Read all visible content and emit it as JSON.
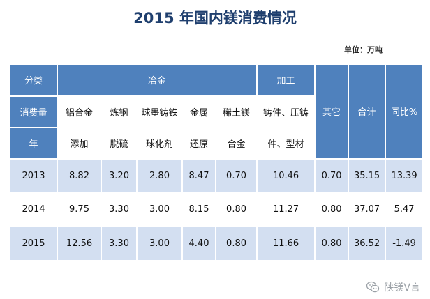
{
  "title": "2015 年国内镁消费情况",
  "unit": "单位：万吨",
  "header": {
    "row_label_top": "分类",
    "row_label_mid": "消费量",
    "row_label_bot": "年",
    "group_metallurgy": "冶金",
    "group_processing": "加工",
    "cols": [
      {
        "line1": "铝合金",
        "line2": "添加"
      },
      {
        "line1": "炼钢",
        "line2": "脱硫"
      },
      {
        "line1": "球墨铸铁",
        "line2": "球化剂"
      },
      {
        "line1": "金属",
        "line2": "还原"
      },
      {
        "line1": "稀土镁",
        "line2": "合金"
      },
      {
        "line1": "铸件、压铸",
        "line2": "件、型材"
      }
    ],
    "other": "其它",
    "total": "合计",
    "yoy": "同比%"
  },
  "rows": [
    {
      "year": "2013",
      "values": [
        "8.82",
        "3.20",
        "2.80",
        "8.47",
        "0.70",
        "10.46",
        "0.70",
        "35.15",
        "13.39"
      ]
    },
    {
      "year": "2014",
      "values": [
        "9.75",
        "3.30",
        "3.00",
        "8.15",
        "0.80",
        "11.27",
        "0.80",
        "37.07",
        "5.47"
      ]
    },
    {
      "year": "2015",
      "values": [
        "12.56",
        "3.30",
        "3.00",
        "4.40",
        "0.80",
        "11.66",
        "0.80",
        "36.52",
        "-1.49"
      ]
    }
  ],
  "watermark": "陕镁V言",
  "watermark_icon": "wechat-icon"
}
